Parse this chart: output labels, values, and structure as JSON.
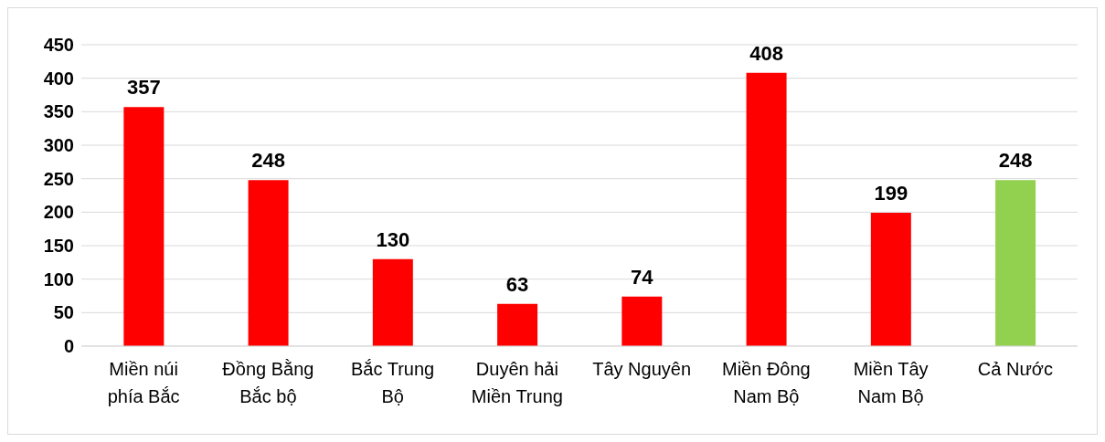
{
  "chart_data": {
    "type": "bar",
    "categories": [
      "Miền núi phía Bắc",
      "Đồng Bằng Bắc bộ",
      "Bắc Trung Bộ",
      "Duyên hải Miền Trung",
      "Tây Nguyên",
      "Miền Đông Nam Bộ",
      "Miền Tây Nam Bộ",
      "Cả Nước"
    ],
    "values": [
      357,
      248,
      130,
      63,
      74,
      408,
      199,
      248
    ],
    "colors": [
      "#ff0000",
      "#ff0000",
      "#ff0000",
      "#ff0000",
      "#ff0000",
      "#ff0000",
      "#ff0000",
      "#92d050"
    ],
    "ylim": [
      0,
      450
    ],
    "yticks": [
      0,
      50,
      100,
      150,
      200,
      250,
      300,
      350,
      400,
      450
    ],
    "grid": "y",
    "data_labels": true
  }
}
